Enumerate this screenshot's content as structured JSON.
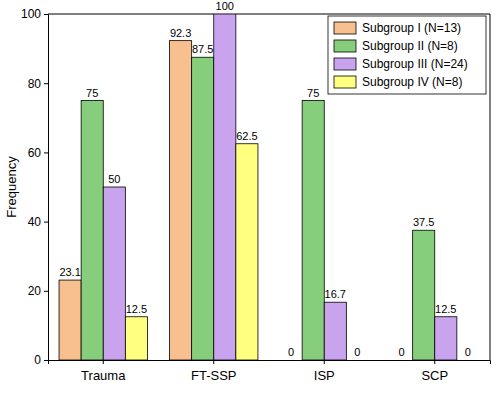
{
  "chart_data": {
    "type": "bar",
    "y_label": "Frequency",
    "categories": [
      "Trauma",
      "FT-SSP",
      "ISP",
      "SCP"
    ],
    "series": [
      {
        "name": "Subgroup I (N=13)",
        "color": "#F9C08F",
        "values": [
          23.1,
          92.3,
          0,
          0
        ]
      },
      {
        "name": "Subgroup II (N=8)",
        "color": "#86CE7C",
        "values": [
          75,
          87.5,
          75,
          37.5
        ]
      },
      {
        "name": "Subgroup III (N=24)",
        "color": "#C9A3EE",
        "values": [
          50,
          100,
          16.7,
          12.5
        ]
      },
      {
        "name": "Subgroup IV (N=8)",
        "color": "#FFFF80",
        "values": [
          12.5,
          62.5,
          0,
          0
        ]
      }
    ],
    "ylim": [
      0,
      100
    ],
    "yticks": [
      0,
      20,
      40,
      60,
      80,
      100
    ],
    "grid": false,
    "legend": "top-right",
    "data_labels": true
  }
}
